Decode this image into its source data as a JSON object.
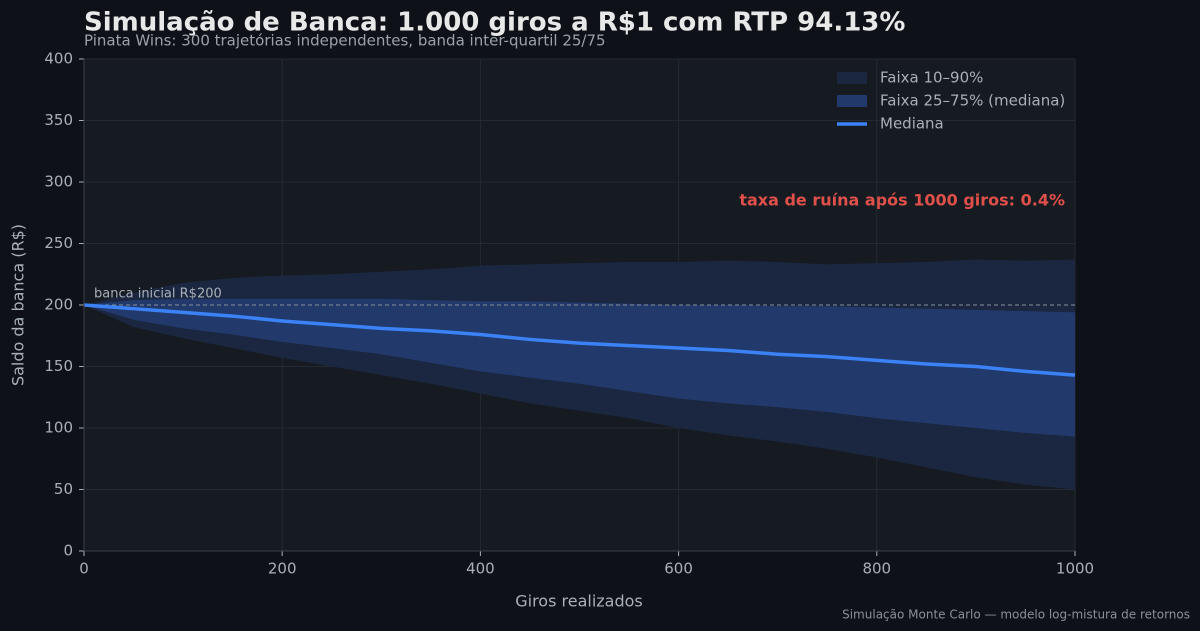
{
  "chart_data": {
    "type": "fan",
    "title": "Simulação de Banca: 1.000 giros a R$1 com RTP 94.13%",
    "subtitle": "Pinata Wins: 300 trajetórias independentes, banda inter-quartil 25/75",
    "x_label": "Giros realizados",
    "y_label": "Saldo da banca (R$)",
    "footnote": "Simulação Monte Carlo — modelo log-mistura de retornos",
    "annotation": "taxa de ruína após 1000 giros: 0.4%",
    "annotation_color": "#e0504a",
    "reference": {
      "value": 200,
      "label": "banca inicial R$200"
    },
    "x": [
      0,
      50,
      100,
      150,
      200,
      250,
      300,
      350,
      400,
      450,
      500,
      550,
      600,
      650,
      700,
      750,
      800,
      850,
      900,
      950,
      1000
    ],
    "bands": [
      {
        "name": "Faixa 10–90%",
        "color": "#1b2740",
        "lower": [
          200,
          182,
          173,
          165,
          157,
          150,
          143,
          136,
          128,
          120,
          114,
          108,
          100,
          94,
          89,
          83,
          76,
          68,
          60,
          54,
          50
        ],
        "upper": [
          200,
          210,
          218,
          222,
          224,
          225,
          227,
          229,
          232,
          233,
          234,
          235,
          235,
          236,
          235,
          233,
          234,
          235,
          237,
          236,
          237
        ]
      },
      {
        "name": "Faixa 25–75% (mediana)",
        "color": "#223a6b",
        "lower": [
          200,
          188,
          181,
          176,
          170,
          165,
          160,
          153,
          146,
          141,
          136,
          130,
          124,
          120,
          117,
          113,
          108,
          104,
          100,
          96,
          93
        ],
        "upper": [
          200,
          204,
          205,
          205,
          205,
          205,
          205,
          204,
          203,
          203,
          202,
          201,
          200,
          200,
          199,
          199,
          198,
          197,
          196,
          195,
          194
        ]
      }
    ],
    "series": [
      {
        "name": "Mediana",
        "color": "#3b82f6",
        "values": [
          200,
          197,
          194,
          191,
          187,
          184,
          181,
          179,
          176,
          172,
          169,
          167,
          165,
          163,
          160,
          158,
          155,
          152,
          150,
          146,
          143
        ]
      }
    ],
    "xlim": [
      0,
      1000
    ],
    "xticks": [
      0,
      200,
      400,
      600,
      800,
      1000
    ],
    "ylim": [
      0,
      400
    ],
    "yticks": [
      0,
      50,
      100,
      150,
      200,
      250,
      300,
      350,
      400
    ],
    "grid": true
  }
}
